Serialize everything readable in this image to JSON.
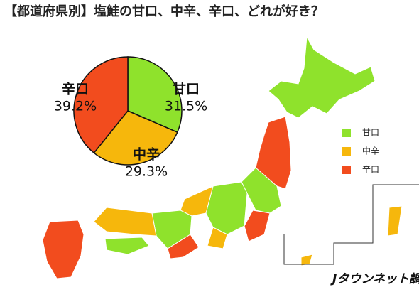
{
  "chart_data": {
    "type": "pie",
    "title": "【都道府県別】塩鮭の甘口、中辛、辛口、どれが好き？",
    "categories": [
      "甘口",
      "中辛",
      "辛口"
    ],
    "values": [
      31.5,
      29.3,
      39.2
    ],
    "value_labels": [
      "31.5%",
      "29.3%",
      "39.2%"
    ],
    "colors": [
      "#8fe22c",
      "#f6b70c",
      "#f24c1e"
    ],
    "source": "Jタウンネット調べ"
  }
}
